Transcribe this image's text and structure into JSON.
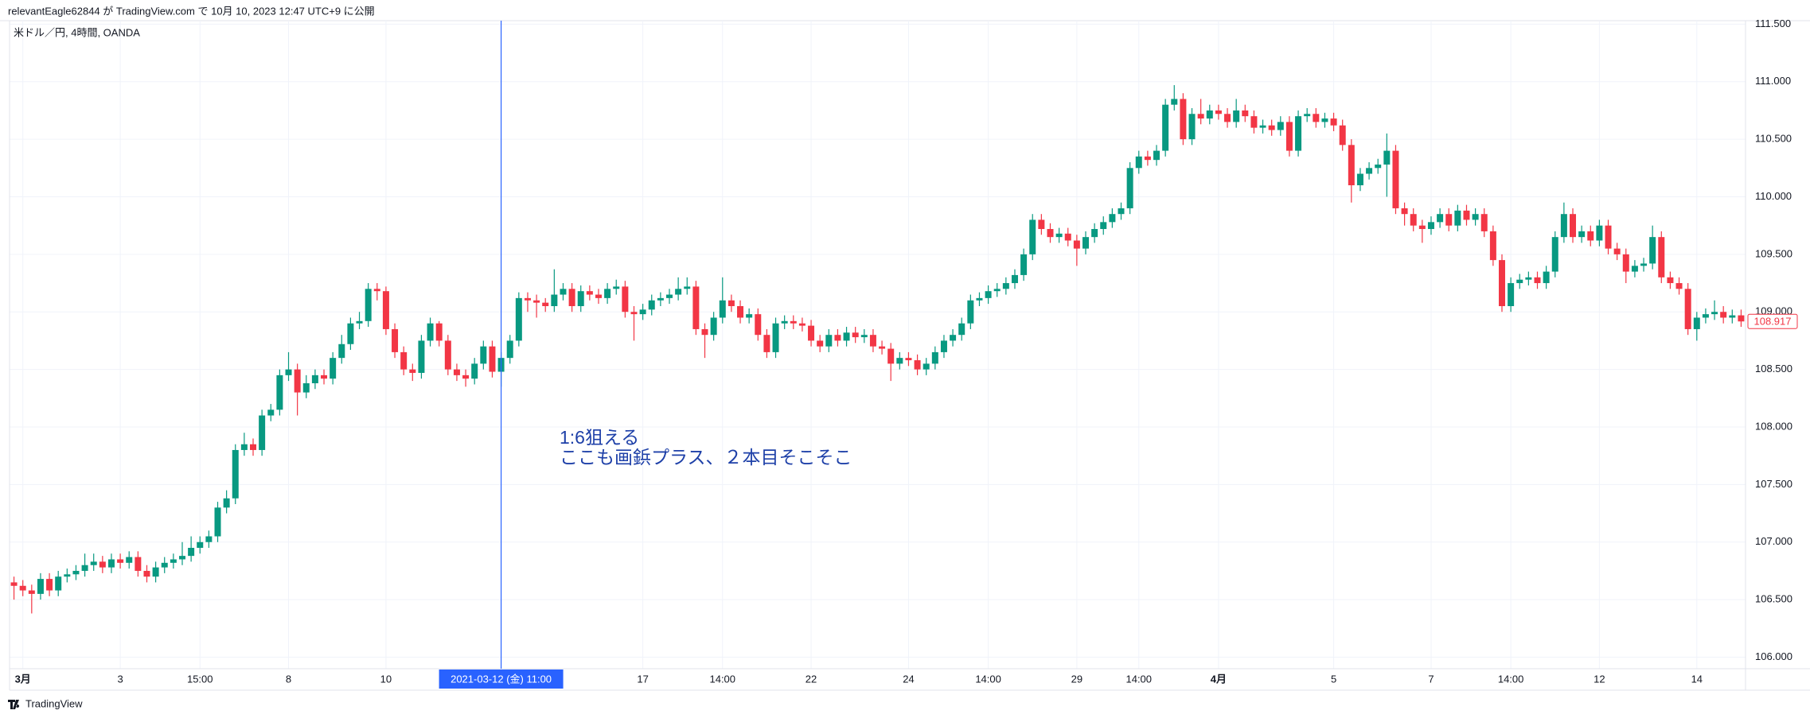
{
  "header": "relevantEagle62844 が TradingView.com で 10月 10, 2023 12:47 UTC+9 に公開",
  "footer": "TradingView",
  "chart_data": {
    "type": "candlestick",
    "title": "米ドル／円, 4時間, OANDA",
    "up_color": "#089981",
    "down_color": "#f23645",
    "grid": true,
    "xlim": [
      -0.5,
      195.5
    ],
    "xticks": [
      {
        "value": 1,
        "label": "3月"
      },
      {
        "value": 12,
        "label": "3"
      },
      {
        "value": 21,
        "label": "15:00"
      },
      {
        "value": 31,
        "label": "8"
      },
      {
        "value": 42,
        "label": "10"
      },
      {
        "value": 71,
        "label": "17"
      },
      {
        "value": 80,
        "label": "14:00"
      },
      {
        "value": 90,
        "label": "22"
      },
      {
        "value": 101,
        "label": "24"
      },
      {
        "value": 110,
        "label": "14:00"
      },
      {
        "value": 120,
        "label": "29"
      },
      {
        "value": 127,
        "label": "14:00"
      },
      {
        "value": 136,
        "label": "4月"
      },
      {
        "value": 149,
        "label": "5"
      },
      {
        "value": 160,
        "label": "7"
      },
      {
        "value": 169,
        "label": "14:00"
      },
      {
        "value": 179,
        "label": "12"
      },
      {
        "value": 190,
        "label": "14"
      }
    ],
    "ylim": [
      105.9,
      111.53
    ],
    "yticks": [
      {
        "value": 106,
        "label": "106.000"
      },
      {
        "value": 106.5,
        "label": "106.500"
      },
      {
        "value": 107,
        "label": "107.000"
      },
      {
        "value": 107.5,
        "label": "107.500"
      },
      {
        "value": 108,
        "label": "108.000"
      },
      {
        "value": 108.5,
        "label": "108.500"
      },
      {
        "value": 109,
        "label": "109.000"
      },
      {
        "value": 109.5,
        "label": "109.500"
      },
      {
        "value": 110,
        "label": "110.000"
      },
      {
        "value": 110.5,
        "label": "110.500"
      },
      {
        "value": 111,
        "label": "111.000"
      },
      {
        "value": 111.5,
        "label": "111.500"
      }
    ],
    "crosshair": {
      "value": 55,
      "label": "2021-03-12 (金)  11:00"
    },
    "last_price": 108.917,
    "annotation": [
      "1:6狙える",
      "ここも画鋲プラス、２本目そこそこ"
    ],
    "open": [
      106.65,
      106.62,
      106.58,
      106.55,
      106.68,
      106.58,
      106.7,
      106.72,
      106.75,
      106.8,
      106.83,
      106.78,
      106.85,
      106.82,
      106.87,
      106.75,
      106.7,
      106.78,
      106.82,
      106.85,
      106.88,
      106.95,
      107.0,
      107.05,
      107.3,
      107.38,
      107.8,
      107.85,
      107.8,
      108.1,
      108.15,
      108.45,
      108.5,
      108.3,
      108.38,
      108.45,
      108.42,
      108.6,
      108.72,
      108.9,
      108.92,
      109.2,
      109.18,
      108.85,
      108.65,
      108.5,
      108.47,
      108.75,
      108.9,
      108.75,
      108.5,
      108.45,
      108.42,
      108.55,
      108.7,
      108.48,
      108.6,
      108.75,
      109.12,
      109.1,
      109.08,
      109.05,
      109.15,
      109.2,
      109.05,
      109.18,
      109.15,
      109.12,
      109.2,
      109.22,
      109.0,
      108.98,
      109.02,
      109.1,
      109.12,
      109.15,
      109.2,
      109.22,
      108.85,
      108.8,
      108.95,
      109.1,
      109.05,
      108.95,
      108.98,
      108.8,
      108.65,
      108.9,
      108.92,
      108.9,
      108.88,
      108.75,
      108.7,
      108.8,
      108.75,
      108.82,
      108.78,
      108.8,
      108.7,
      108.68,
      108.55,
      108.6,
      108.58,
      108.5,
      108.55,
      108.65,
      108.75,
      108.8,
      108.9,
      109.1,
      109.12,
      109.18,
      109.2,
      109.25,
      109.32,
      109.5,
      109.8,
      109.72,
      109.65,
      109.68,
      109.62,
      109.55,
      109.65,
      109.72,
      109.78,
      109.85,
      109.9,
      110.25,
      110.35,
      110.32,
      110.4,
      110.8,
      110.85,
      110.5,
      110.72,
      110.68,
      110.75,
      110.72,
      110.65,
      110.75,
      110.7,
      110.6,
      110.62,
      110.58,
      110.65,
      110.4,
      110.7,
      110.72,
      110.65,
      110.68,
      110.62,
      110.45,
      110.1,
      110.2,
      110.25,
      110.28,
      110.4,
      109.9,
      109.85,
      109.75,
      109.72,
      109.78,
      109.85,
      109.75,
      109.88,
      109.8,
      109.85,
      109.7,
      109.45,
      109.05,
      109.25,
      109.28,
      109.3,
      109.25,
      109.35,
      109.65,
      109.85,
      109.65,
      109.7,
      109.62,
      109.75,
      109.55,
      109.5,
      109.35,
      109.4,
      109.42,
      109.65,
      109.3,
      109.25,
      109.2,
      108.85,
      108.95,
      108.98,
      109.0,
      108.95,
      108.97
    ],
    "high": [
      106.7,
      106.67,
      106.63,
      106.73,
      106.73,
      106.75,
      106.77,
      106.8,
      106.9,
      106.9,
      106.88,
      106.9,
      106.9,
      106.92,
      106.92,
      106.8,
      106.83,
      106.87,
      106.9,
      107.0,
      107.05,
      107.05,
      107.1,
      107.35,
      107.45,
      107.85,
      107.95,
      107.9,
      108.15,
      108.2,
      108.5,
      108.65,
      108.55,
      108.45,
      108.5,
      108.5,
      108.65,
      108.8,
      108.95,
      109.0,
      109.25,
      109.25,
      109.22,
      108.9,
      108.7,
      108.55,
      108.8,
      108.95,
      108.92,
      108.8,
      108.55,
      108.5,
      108.6,
      108.75,
      108.75,
      108.65,
      108.8,
      109.17,
      109.17,
      109.15,
      109.12,
      109.37,
      109.25,
      109.25,
      109.23,
      109.23,
      109.2,
      109.25,
      109.28,
      109.27,
      109.05,
      109.07,
      109.15,
      109.17,
      109.2,
      109.3,
      109.3,
      109.27,
      108.9,
      109.0,
      109.3,
      109.15,
      109.1,
      109.03,
      109.03,
      108.85,
      108.95,
      108.97,
      108.97,
      108.95,
      108.93,
      108.8,
      108.85,
      108.85,
      108.87,
      108.87,
      108.85,
      108.85,
      108.75,
      108.73,
      108.65,
      108.65,
      108.63,
      108.6,
      108.7,
      108.8,
      108.85,
      108.95,
      109.15,
      109.17,
      109.23,
      109.25,
      109.3,
      109.37,
      109.55,
      109.85,
      109.85,
      109.77,
      109.73,
      109.73,
      109.67,
      109.7,
      109.77,
      109.83,
      109.9,
      109.95,
      110.3,
      110.4,
      110.4,
      110.45,
      110.85,
      110.97,
      110.9,
      110.77,
      110.85,
      110.8,
      110.8,
      110.77,
      110.85,
      110.8,
      110.75,
      110.67,
      110.67,
      110.7,
      110.7,
      110.75,
      110.77,
      110.77,
      110.73,
      110.73,
      110.67,
      110.5,
      110.25,
      110.3,
      110.33,
      110.55,
      110.45,
      109.95,
      109.9,
      109.8,
      109.83,
      109.9,
      109.9,
      109.93,
      109.93,
      109.9,
      109.9,
      109.75,
      109.5,
      109.3,
      109.33,
      109.35,
      109.35,
      109.4,
      109.7,
      109.95,
      109.9,
      109.75,
      109.75,
      109.8,
      109.8,
      109.6,
      109.55,
      109.45,
      109.47,
      109.75,
      109.7,
      109.35,
      109.3,
      109.25,
      109.0,
      109.03,
      109.1,
      109.05,
      109.02,
      109.02
    ],
    "low": [
      106.5,
      106.53,
      106.38,
      106.5,
      106.53,
      106.53,
      106.65,
      106.67,
      106.7,
      106.75,
      106.73,
      106.73,
      106.77,
      106.77,
      106.7,
      106.65,
      106.65,
      106.73,
      106.77,
      106.8,
      106.83,
      106.9,
      106.95,
      107.0,
      107.25,
      107.33,
      107.75,
      107.75,
      107.75,
      108.05,
      108.1,
      108.4,
      108.1,
      108.25,
      108.33,
      108.37,
      108.37,
      108.55,
      108.67,
      108.85,
      108.87,
      109.1,
      108.8,
      108.6,
      108.45,
      108.4,
      108.42,
      108.7,
      108.7,
      108.45,
      108.4,
      108.35,
      108.37,
      108.5,
      108.43,
      108.35,
      108.55,
      108.7,
      109.0,
      108.95,
      109.0,
      109.0,
      109.1,
      109.0,
      109.0,
      109.1,
      109.07,
      109.07,
      109.15,
      108.95,
      108.75,
      108.93,
      108.97,
      109.05,
      109.07,
      109.1,
      109.15,
      108.8,
      108.6,
      108.75,
      108.9,
      109.0,
      108.9,
      108.9,
      108.75,
      108.6,
      108.6,
      108.85,
      108.85,
      108.83,
      108.7,
      108.65,
      108.65,
      108.7,
      108.7,
      108.73,
      108.73,
      108.65,
      108.63,
      108.4,
      108.5,
      108.53,
      108.45,
      108.45,
      108.5,
      108.6,
      108.7,
      108.75,
      108.85,
      109.05,
      109.07,
      109.13,
      109.15,
      109.2,
      109.27,
      109.45,
      109.67,
      109.6,
      109.6,
      109.57,
      109.4,
      109.5,
      109.6,
      109.67,
      109.73,
      109.8,
      109.85,
      110.2,
      110.27,
      110.27,
      110.35,
      110.75,
      110.45,
      110.45,
      110.63,
      110.63,
      110.67,
      110.6,
      110.6,
      110.65,
      110.55,
      110.55,
      110.53,
      110.53,
      110.35,
      110.35,
      110.65,
      110.6,
      110.6,
      110.57,
      110.4,
      109.95,
      110.05,
      110.15,
      110.2,
      110.0,
      109.85,
      109.75,
      109.7,
      109.6,
      109.67,
      109.73,
      109.7,
      109.7,
      109.75,
      109.75,
      109.65,
      109.4,
      109.0,
      109.0,
      109.2,
      109.23,
      109.2,
      109.2,
      109.3,
      109.6,
      109.6,
      109.6,
      109.57,
      109.57,
      109.5,
      109.45,
      109.25,
      109.3,
      109.35,
      109.37,
      109.25,
      109.2,
      109.15,
      108.8,
      108.75,
      108.9,
      108.93,
      108.9,
      108.9,
      108.87
    ],
    "close": [
      106.62,
      106.58,
      106.55,
      106.68,
      106.58,
      106.7,
      106.72,
      106.75,
      106.8,
      106.83,
      106.78,
      106.85,
      106.82,
      106.87,
      106.75,
      106.7,
      106.78,
      106.82,
      106.85,
      106.88,
      106.95,
      107.0,
      107.05,
      107.3,
      107.38,
      107.8,
      107.85,
      107.8,
      108.1,
      108.15,
      108.45,
      108.5,
      108.3,
      108.38,
      108.45,
      108.42,
      108.6,
      108.72,
      108.9,
      108.92,
      109.2,
      109.18,
      108.85,
      108.65,
      108.5,
      108.47,
      108.75,
      108.9,
      108.75,
      108.5,
      108.45,
      108.42,
      108.55,
      108.7,
      108.48,
      108.6,
      108.75,
      109.12,
      109.1,
      109.08,
      109.05,
      109.15,
      109.2,
      109.05,
      109.18,
      109.15,
      109.12,
      109.2,
      109.22,
      109.0,
      108.98,
      109.02,
      109.1,
      109.12,
      109.15,
      109.2,
      109.22,
      108.85,
      108.8,
      108.95,
      109.1,
      109.05,
      108.95,
      108.98,
      108.8,
      108.65,
      108.9,
      108.92,
      108.9,
      108.88,
      108.75,
      108.7,
      108.8,
      108.75,
      108.82,
      108.78,
      108.8,
      108.7,
      108.68,
      108.55,
      108.6,
      108.58,
      108.5,
      108.55,
      108.65,
      108.75,
      108.8,
      108.9,
      109.1,
      109.12,
      109.18,
      109.2,
      109.25,
      109.32,
      109.5,
      109.8,
      109.72,
      109.65,
      109.68,
      109.62,
      109.55,
      109.65,
      109.72,
      109.78,
      109.85,
      109.9,
      110.25,
      110.35,
      110.32,
      110.4,
      110.8,
      110.85,
      110.5,
      110.72,
      110.68,
      110.75,
      110.72,
      110.65,
      110.75,
      110.7,
      110.6,
      110.62,
      110.58,
      110.65,
      110.4,
      110.7,
      110.72,
      110.65,
      110.68,
      110.62,
      110.45,
      110.1,
      110.2,
      110.25,
      110.28,
      110.4,
      109.9,
      109.85,
      109.75,
      109.72,
      109.78,
      109.85,
      109.75,
      109.88,
      109.8,
      109.85,
      109.7,
      109.45,
      109.05,
      109.25,
      109.28,
      109.3,
      109.25,
      109.35,
      109.65,
      109.85,
      109.65,
      109.7,
      109.62,
      109.75,
      109.55,
      109.5,
      109.35,
      109.4,
      109.42,
      109.65,
      109.3,
      109.25,
      109.2,
      108.85,
      108.95,
      108.98,
      109.0,
      108.95,
      108.97,
      108.917
    ]
  }
}
